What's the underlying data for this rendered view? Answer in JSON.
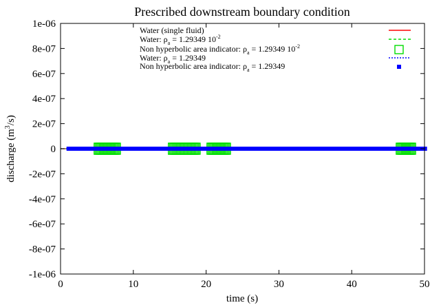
{
  "chart_data": {
    "type": "scatter",
    "title": "Prescribed downstream boundary condition",
    "xlabel": "time (s)",
    "ylabel": "discharge (m³/s)",
    "ylabel_main": "discharge (m",
    "ylabel_sup": "3",
    "ylabel_end": "/s)",
    "xlim": [
      0,
      50
    ],
    "ylim": [
      -1e-06,
      1e-06
    ],
    "x_ticks": [
      "0",
      "10",
      "20",
      "30",
      "40",
      "50"
    ],
    "x_tick_values": [
      0,
      10,
      20,
      30,
      40,
      50
    ],
    "y_ticks": [
      "1e-06",
      "8e-07",
      "6e-07",
      "4e-07",
      "2e-07",
      "0",
      "-2e-07",
      "-4e-07",
      "-6e-07",
      "-8e-07",
      "-1e-06"
    ],
    "y_tick_values": [
      1e-06,
      8e-07,
      6e-07,
      4e-07,
      2e-07,
      0,
      -2e-07,
      -4e-07,
      -6e-07,
      -8e-07,
      -1e-06
    ],
    "grid": false,
    "legend_position": "top-right",
    "legend": [
      {
        "text": "Water (single fluid)",
        "style": "line",
        "color": "#ff0000"
      },
      {
        "text": "Water: ρa = 1.29349 10-2",
        "t1": "Water: ρ",
        "sub": "a",
        "t2": " = 1.29349 10",
        "sup": "-2",
        "style": "dashed",
        "color": "#00dd00"
      },
      {
        "text": "Non hyperbolic area indicator: ρa = 1.29349 10-2",
        "t1": "Non hyperbolic area indicator: ρ",
        "sub": "a",
        "t2": " = 1.29349 10",
        "sup": "-2",
        "style": "open-square",
        "color": "#00dd00"
      },
      {
        "text": "Water: ρa = 1.29349",
        "t1": "Water: ρ",
        "sub": "a",
        "t2": " = 1.29349",
        "style": "dotted",
        "color": "#0000ff"
      },
      {
        "text": "Non hyperbolic area indicator: ρa = 1.29349",
        "t1": "Non hyperbolic area indicator: ρ",
        "sub": "a",
        "t2": " = 1.29349",
        "style": "filled-square",
        "color": "#0000ff"
      }
    ],
    "series": [
      {
        "style": "line",
        "color": "#ff0000",
        "x": [
          0,
          50
        ],
        "y": [
          0,
          0
        ]
      },
      {
        "style": "dashed",
        "color": "#00dd00",
        "x": [
          0,
          50
        ],
        "y": [
          0,
          0
        ]
      },
      {
        "style": "open-square",
        "color": "#00dd00",
        "x_ranges": [
          [
            5.0,
            8.0
          ],
          [
            15.2,
            18.8
          ],
          [
            20.5,
            23.0
          ],
          [
            46.5,
            48.5
          ]
        ],
        "y": 0
      },
      {
        "style": "dotted",
        "color": "#0000ff",
        "x": [
          0,
          50
        ],
        "y": [
          0,
          0
        ]
      },
      {
        "style": "filled-square",
        "color": "#0000ff",
        "x_ranges": [
          [
            1.2,
            50
          ]
        ],
        "y": 0
      }
    ]
  }
}
